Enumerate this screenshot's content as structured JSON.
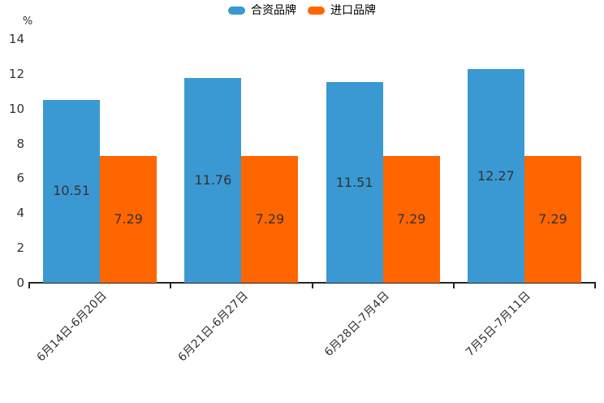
{
  "chart_data": {
    "type": "bar",
    "title": "",
    "xlabel": "",
    "ylabel": "%",
    "ylim": [
      0,
      14
    ],
    "yticks": [
      0,
      2,
      4,
      6,
      8,
      10,
      12,
      14
    ],
    "grid": false,
    "legend_position": "top-center",
    "value_labels": true,
    "categories": [
      "6月14日-6月20日",
      "6月21日-6月27日",
      "6月28日-7月4日",
      "7月5日-7月11日"
    ],
    "series": [
      {
        "name": "合资品牌",
        "color": "#3A99D2",
        "values": [
          10.51,
          11.76,
          11.51,
          12.27
        ]
      },
      {
        "name": "进口品牌",
        "color": "#FF6600",
        "values": [
          7.29,
          7.29,
          7.29,
          7.29
        ]
      }
    ],
    "colors": {
      "axis": "#262626",
      "label_text": "#333333",
      "background": "#ffffff"
    }
  }
}
